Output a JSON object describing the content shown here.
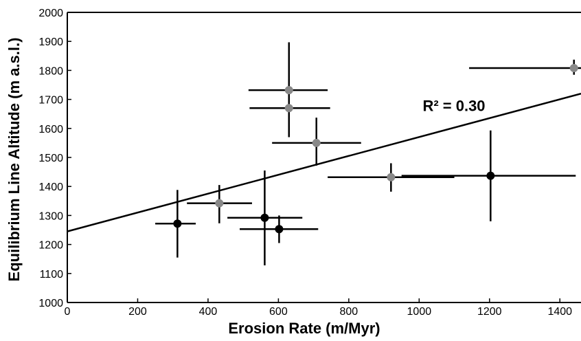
{
  "chart_data": {
    "type": "scatter",
    "xlabel": "Erosion Rate (m/Myr)",
    "ylabel": "Equilibrium Line Altitude (m a.s.l.)",
    "xlim": [
      0,
      1460
    ],
    "ylim": [
      1000,
      2000
    ],
    "xticks": [
      0,
      200,
      400,
      600,
      800,
      1000,
      1200,
      1400
    ],
    "yticks": [
      1000,
      1100,
      1200,
      1300,
      1400,
      1500,
      1600,
      1700,
      1800,
      1900,
      2000
    ],
    "grid": false,
    "annotation": {
      "text": "R² = 0.30",
      "x": 1010,
      "y": 1660
    },
    "trendline": {
      "x": [
        0,
        1460
      ],
      "y": [
        1245,
        1720
      ]
    },
    "colors": {
      "black": "#000000",
      "gray": "#888888"
    },
    "points": [
      {
        "x": 313,
        "y": 1272,
        "xerr": [
          250,
          365
        ],
        "yerr": [
          1155,
          1388
        ],
        "color": "black"
      },
      {
        "x": 432,
        "y": 1342,
        "xerr": [
          340,
          525
        ],
        "yerr": [
          1273,
          1405
        ],
        "color": "gray"
      },
      {
        "x": 561,
        "y": 1292,
        "xerr": [
          455,
          668
        ],
        "yerr": [
          1128,
          1455
        ],
        "color": "black"
      },
      {
        "x": 602,
        "y": 1253,
        "xerr": [
          490,
          713
        ],
        "yerr": [
          1205,
          1300
        ],
        "color": "black"
      },
      {
        "x": 630,
        "y": 1732,
        "xerr": [
          515,
          740
        ],
        "yerr": [
          1570,
          1897
        ],
        "color": "gray"
      },
      {
        "x": 630,
        "y": 1670,
        "xerr": [
          518,
          747
        ],
        "yerr": [
          1570,
          1770
        ],
        "color": "gray"
      },
      {
        "x": 708,
        "y": 1550,
        "xerr": [
          582,
          835
        ],
        "yerr": [
          1472,
          1637
        ],
        "color": "gray"
      },
      {
        "x": 920,
        "y": 1432,
        "xerr": [
          740,
          1100
        ],
        "yerr": [
          1382,
          1480
        ],
        "color": "gray"
      },
      {
        "x": 1203,
        "y": 1437,
        "xerr": [
          950,
          1445
        ],
        "yerr": [
          1280,
          1593
        ],
        "color": "black"
      },
      {
        "x": 1440,
        "y": 1808,
        "xerr": [
          1142,
          1460
        ],
        "yerr": [
          1785,
          1837
        ],
        "color": "gray"
      }
    ]
  }
}
